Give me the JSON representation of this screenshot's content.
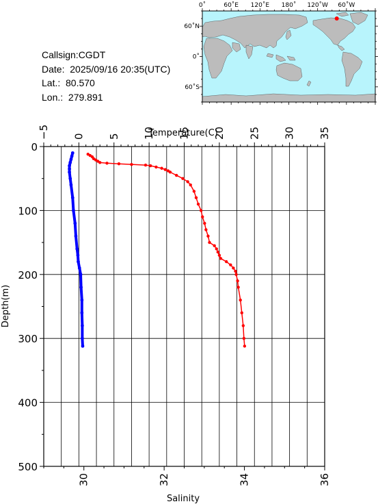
{
  "info": {
    "callsign": "Callsign:CGDT",
    "date": "Date:  2025/09/16 20:35(UTC)",
    "lat": "Lat.:  80.570",
    "lon": "Lon.:  279.891"
  },
  "map": {
    "top_labels": [
      "0˚",
      "60˚E",
      "120˚E",
      "180˚",
      "120˚W",
      "60˚W"
    ],
    "left_labels": [
      "60˚N",
      "0˚",
      "60˚S"
    ],
    "colors": {
      "ocean": "#b8f4fc",
      "land": "#bcbcbc",
      "marker": "#ff0000"
    },
    "marker": {
      "lat": 80.57,
      "lon": 279.891
    }
  },
  "chart_data": {
    "type": "line",
    "x_top": {
      "label": "Temperature(C)",
      "range": [
        -5,
        35
      ],
      "ticks": [
        "−5",
        "0",
        "5",
        "10",
        "15",
        "20",
        "25",
        "30",
        "35"
      ]
    },
    "x_bottom": {
      "label": "Salinity",
      "range": [
        29.0,
        36.0
      ],
      "ticks": [
        "30",
        "32",
        "34",
        "36"
      ]
    },
    "y": {
      "label": "Depth(m)",
      "range": [
        0,
        500
      ],
      "inverted": true,
      "ticks": [
        "0",
        "100",
        "200",
        "300",
        "400",
        "500"
      ]
    },
    "grid": true,
    "series": [
      {
        "quantity": "temperature",
        "axis": "top",
        "color": "#ff0000",
        "depth": [
          12,
          14,
          16,
          19,
          21,
          23,
          25,
          26,
          27,
          28,
          29,
          30,
          32,
          34,
          36,
          38,
          40,
          45,
          50,
          55,
          60,
          70,
          80,
          90,
          100,
          110,
          120,
          130,
          140,
          150,
          155,
          160,
          165,
          170,
          175,
          180,
          185,
          190,
          195,
          200,
          210,
          220,
          240,
          260,
          280,
          300,
          312
        ],
        "values": [
          1.3,
          1.6,
          1.9,
          2.1,
          2.4,
          2.7,
          3.0,
          4.0,
          5.7,
          7.5,
          9.5,
          10.2,
          11.0,
          11.8,
          12.3,
          12.7,
          13.0,
          13.9,
          14.8,
          15.5,
          15.9,
          16.4,
          16.7,
          17.0,
          17.4,
          17.6,
          17.9,
          18.1,
          18.4,
          18.6,
          19.3,
          19.6,
          19.8,
          20.0,
          20.2,
          21.0,
          21.6,
          22.0,
          22.3,
          22.4,
          22.6,
          22.7,
          23.0,
          23.2,
          23.4,
          23.5,
          23.6
        ]
      },
      {
        "quantity": "salinity",
        "axis": "bottom",
        "color": "#0000ff",
        "depth": [
          10,
          15,
          20,
          25,
          30,
          35,
          40,
          50,
          60,
          80,
          100,
          120,
          140,
          160,
          170,
          180,
          190,
          200,
          220,
          240,
          260,
          280,
          300,
          312
        ],
        "values": [
          29.72,
          29.7,
          29.68,
          29.66,
          29.64,
          29.64,
          29.64,
          29.66,
          29.68,
          29.72,
          29.74,
          29.78,
          29.8,
          29.83,
          29.85,
          29.86,
          29.89,
          29.92,
          29.93,
          29.95,
          29.95,
          29.96,
          29.96,
          29.97
        ]
      }
    ]
  }
}
